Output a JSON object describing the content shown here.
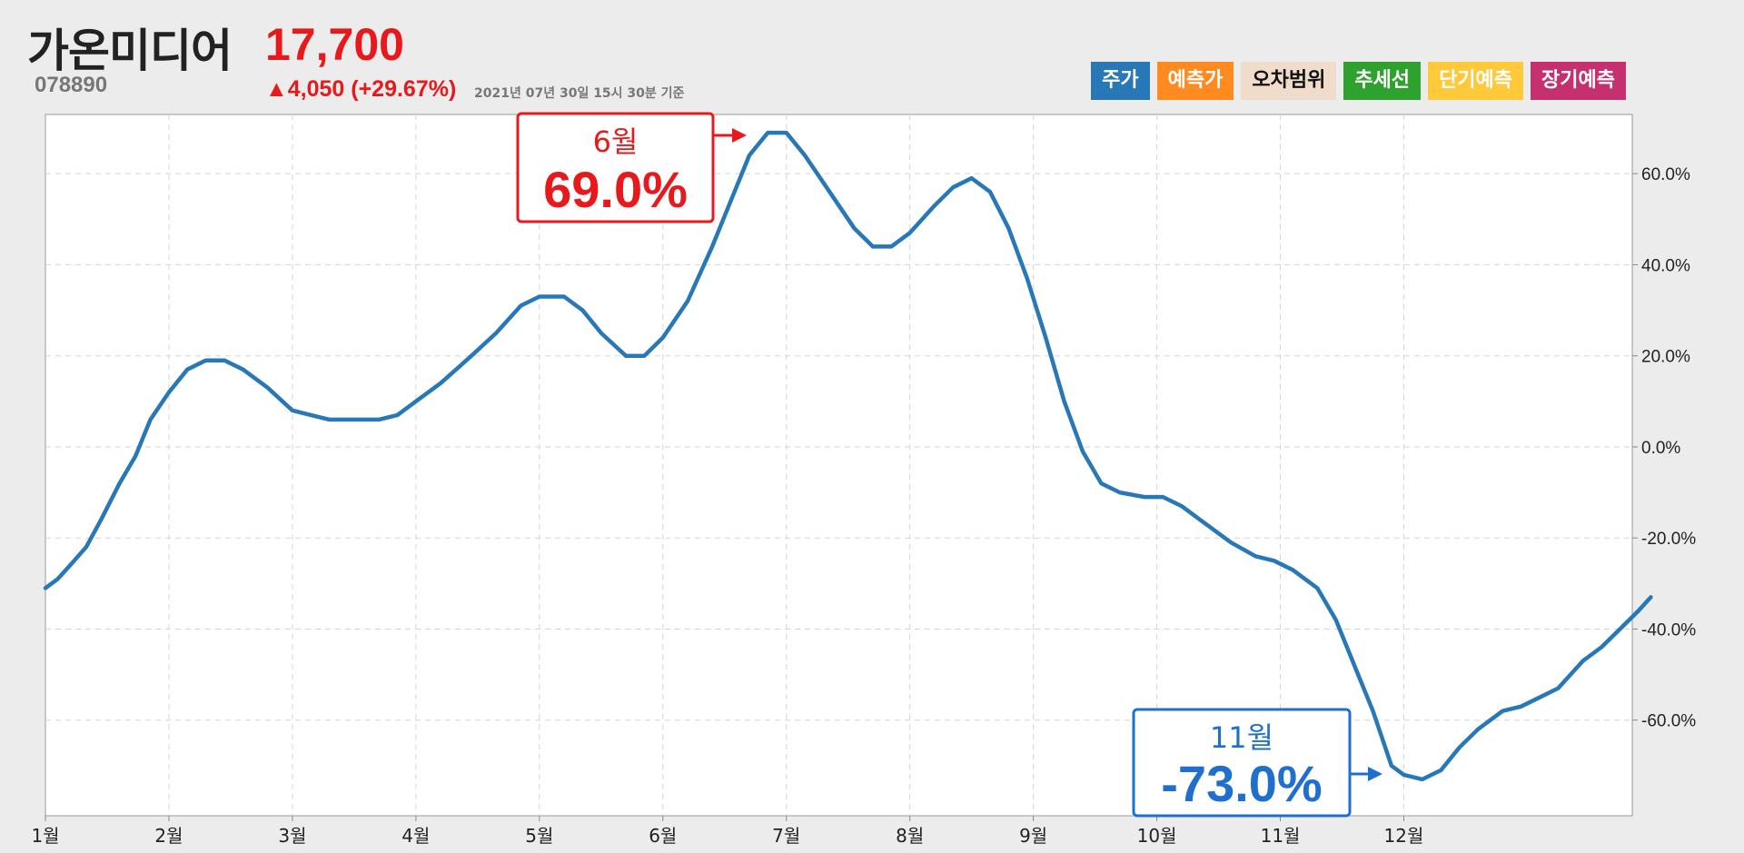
{
  "header": {
    "name": "가온미디어",
    "price": "17,700",
    "code": "078890",
    "change": "▲4,050 (+29.67%)",
    "timestamp": "2021년 07년 30일 15시 30분 기준"
  },
  "legend": [
    {
      "label": "주가",
      "color": "#2878b8",
      "text": "#ffffff"
    },
    {
      "label": "예측가",
      "color": "#ff8a1f",
      "text": "#ffffff"
    },
    {
      "label": "오차범위",
      "color": "#f0dccb",
      "text": "#111111"
    },
    {
      "label": "추세선",
      "color": "#2ea12e",
      "text": "#ffffff"
    },
    {
      "label": "단기예측",
      "color": "#ffc93a",
      "text": "#ffffff"
    },
    {
      "label": "장기예측",
      "color": "#c7306f",
      "text": "#ffffff"
    }
  ],
  "annotations": {
    "high": {
      "month": "6월",
      "value": "69.0%",
      "color": "#e8191c"
    },
    "low": {
      "month": "11월",
      "value": "-73.0%",
      "color": "#1f6fd1"
    }
  },
  "chart_data": {
    "type": "line",
    "series": [
      {
        "color": "#2878b8",
        "points": [
          [
            0,
            -31
          ],
          [
            0.1,
            -29
          ],
          [
            0.2,
            -26
          ],
          [
            0.33,
            -22
          ],
          [
            0.45,
            -16
          ],
          [
            0.6,
            -8
          ],
          [
            0.73,
            -2
          ],
          [
            0.85,
            6
          ],
          [
            1.0,
            12
          ],
          [
            1.15,
            17
          ],
          [
            1.3,
            19
          ],
          [
            1.45,
            19
          ],
          [
            1.6,
            17
          ],
          [
            1.8,
            13
          ],
          [
            2.0,
            8
          ],
          [
            2.15,
            7
          ],
          [
            2.3,
            6
          ],
          [
            2.5,
            6
          ],
          [
            2.7,
            6
          ],
          [
            2.85,
            7
          ],
          [
            3.0,
            10
          ],
          [
            3.2,
            14
          ],
          [
            3.45,
            20
          ],
          [
            3.65,
            25
          ],
          [
            3.85,
            31
          ],
          [
            4.0,
            33
          ],
          [
            4.2,
            33
          ],
          [
            4.35,
            30
          ],
          [
            4.5,
            25
          ],
          [
            4.7,
            20
          ],
          [
            4.85,
            20
          ],
          [
            5.0,
            24
          ],
          [
            5.2,
            32
          ],
          [
            5.4,
            44
          ],
          [
            5.55,
            54
          ],
          [
            5.7,
            64
          ],
          [
            5.85,
            69
          ],
          [
            6.0,
            69
          ],
          [
            6.15,
            64
          ],
          [
            6.35,
            56
          ],
          [
            6.55,
            48
          ],
          [
            6.7,
            44
          ],
          [
            6.85,
            44
          ],
          [
            7.0,
            47
          ],
          [
            7.2,
            53
          ],
          [
            7.35,
            57
          ],
          [
            7.5,
            59
          ],
          [
            7.65,
            56
          ],
          [
            7.8,
            48
          ],
          [
            7.95,
            37
          ],
          [
            8.1,
            24
          ],
          [
            8.25,
            10
          ],
          [
            8.4,
            -1
          ],
          [
            8.55,
            -8
          ],
          [
            8.7,
            -10
          ],
          [
            8.9,
            -11
          ],
          [
            9.05,
            -11
          ],
          [
            9.2,
            -13
          ],
          [
            9.4,
            -17
          ],
          [
            9.6,
            -21
          ],
          [
            9.8,
            -24
          ],
          [
            9.95,
            -25
          ],
          [
            10.1,
            -27
          ],
          [
            10.3,
            -31
          ],
          [
            10.45,
            -38
          ],
          [
            10.6,
            -48
          ],
          [
            10.75,
            -58
          ],
          [
            10.9,
            -70
          ],
          [
            11.0,
            -72
          ],
          [
            11.15,
            -73
          ],
          [
            11.3,
            -71
          ],
          [
            11.45,
            -66
          ],
          [
            11.6,
            -62
          ],
          [
            11.8,
            -58
          ],
          [
            11.95,
            -57
          ],
          [
            12.1,
            -55
          ],
          [
            12.25,
            -53
          ],
          [
            12.45,
            -47
          ],
          [
            12.6,
            -44
          ],
          [
            12.75,
            -40
          ],
          [
            12.9,
            -36
          ],
          [
            13.0,
            -33
          ]
        ]
      }
    ],
    "x_tick_labels": [
      "1월",
      "2월",
      "3월",
      "4월",
      "5월",
      "6월",
      "7월",
      "8월",
      "9월",
      "10월",
      "11월",
      "12월"
    ],
    "y_tick_labels": [
      "60.0%",
      "40.0%",
      "20.0%",
      "0.0%",
      "-20.0%",
      "-40.0%",
      "-60.0%"
    ],
    "y_ticks": [
      60,
      40,
      20,
      0,
      -20,
      -40,
      -60
    ],
    "ylim": [
      -81,
      73
    ],
    "xlim": [
      0,
      12.85
    ],
    "grid": true
  }
}
